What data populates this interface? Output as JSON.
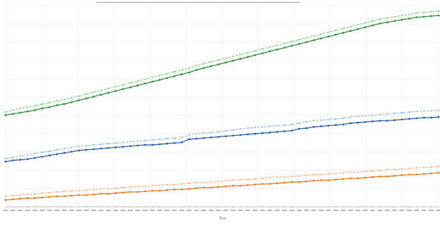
{
  "chart_data": {
    "type": "line",
    "title": "",
    "xlabel": "",
    "ylabel": "",
    "grid": true,
    "legend": "none",
    "point_count": 60,
    "series": [
      {
        "color": "#7fcf7f",
        "style": "dashed",
        "values": [
          153,
          156,
          159,
          161,
          163,
          166,
          168,
          171,
          173,
          176,
          179,
          182,
          185,
          188,
          191,
          194,
          197,
          200,
          203,
          206,
          209,
          212,
          215,
          218,
          221,
          224,
          228,
          231,
          234,
          237,
          240,
          243,
          246,
          249,
          252,
          255,
          258,
          261,
          264,
          267,
          270,
          273,
          276,
          279,
          282,
          285,
          288,
          291,
          294,
          297,
          300,
          303,
          305,
          307,
          309,
          311,
          313,
          314,
          315,
          316
        ]
      },
      {
        "color": "#2e8b3e",
        "style": "solid",
        "values": [
          148,
          150,
          152,
          154,
          156,
          159,
          161,
          164,
          166,
          169,
          172,
          175,
          178,
          181,
          184,
          187,
          190,
          193,
          196,
          199,
          202,
          205,
          208,
          211,
          214,
          217,
          221,
          224,
          227,
          230,
          233,
          236,
          239,
          242,
          245,
          248,
          251,
          254,
          257,
          260,
          263,
          266,
          269,
          272,
          275,
          278,
          281,
          284,
          287,
          290,
          293,
          296,
          298,
          300,
          302,
          304,
          306,
          307,
          308,
          309
        ]
      },
      {
        "color": "#8fb8e8",
        "style": "dashed",
        "values": [
          78,
          80,
          82,
          84,
          86,
          88,
          90,
          92,
          94,
          96,
          98,
          99,
          100,
          101,
          102,
          103,
          104,
          105,
          106,
          107,
          108,
          109,
          110,
          111,
          112,
          116,
          118,
          119,
          120,
          121,
          123,
          124,
          126,
          127,
          128,
          129,
          130,
          131,
          132,
          133,
          135,
          137,
          139,
          140,
          141,
          142,
          143,
          145,
          146,
          147,
          148,
          149,
          150,
          151,
          152,
          153,
          154,
          155,
          155,
          156
        ]
      },
      {
        "color": "#2a5caa",
        "style": "solid",
        "values": [
          73,
          75,
          76,
          77,
          79,
          81,
          83,
          85,
          87,
          89,
          91,
          92,
          93,
          94,
          95,
          96,
          97,
          98,
          99,
          100,
          100,
          101,
          102,
          103,
          104,
          109,
          110,
          111,
          112,
          113,
          114,
          115,
          116,
          117,
          118,
          119,
          120,
          121,
          122,
          123,
          126,
          127,
          129,
          130,
          131,
          132,
          133,
          135,
          136,
          137,
          138,
          139,
          139,
          140,
          141,
          142,
          143,
          144,
          144,
          145
        ]
      },
      {
        "color": "#f4b183",
        "style": "dashed",
        "values": [
          17,
          18,
          19,
          20,
          21,
          22,
          23,
          24,
          25,
          26,
          26,
          27,
          28,
          29,
          29,
          30,
          31,
          32,
          33,
          33,
          34,
          35,
          36,
          36,
          37,
          38,
          39,
          39,
          40,
          41,
          42,
          43,
          44,
          44,
          45,
          46,
          47,
          48,
          48,
          49,
          50,
          51,
          52,
          52,
          53,
          54,
          55,
          56,
          56,
          57,
          58,
          59,
          60,
          60,
          61,
          62,
          63,
          64,
          64,
          65
        ]
      },
      {
        "color": "#e07b1f",
        "style": "solid",
        "values": [
          11,
          12,
          13,
          14,
          14,
          15,
          16,
          17,
          17,
          18,
          19,
          19,
          20,
          21,
          21,
          22,
          23,
          24,
          24,
          25,
          26,
          26,
          27,
          28,
          28,
          29,
          30,
          31,
          31,
          32,
          33,
          34,
          34,
          35,
          36,
          37,
          37,
          38,
          39,
          40,
          40,
          41,
          42,
          43,
          43,
          44,
          45,
          46,
          46,
          47,
          48,
          49,
          49,
          50,
          51,
          52,
          52,
          53,
          54,
          55
        ]
      }
    ],
    "ylim": [
      0,
      325
    ]
  },
  "x_axis_title": "Run"
}
